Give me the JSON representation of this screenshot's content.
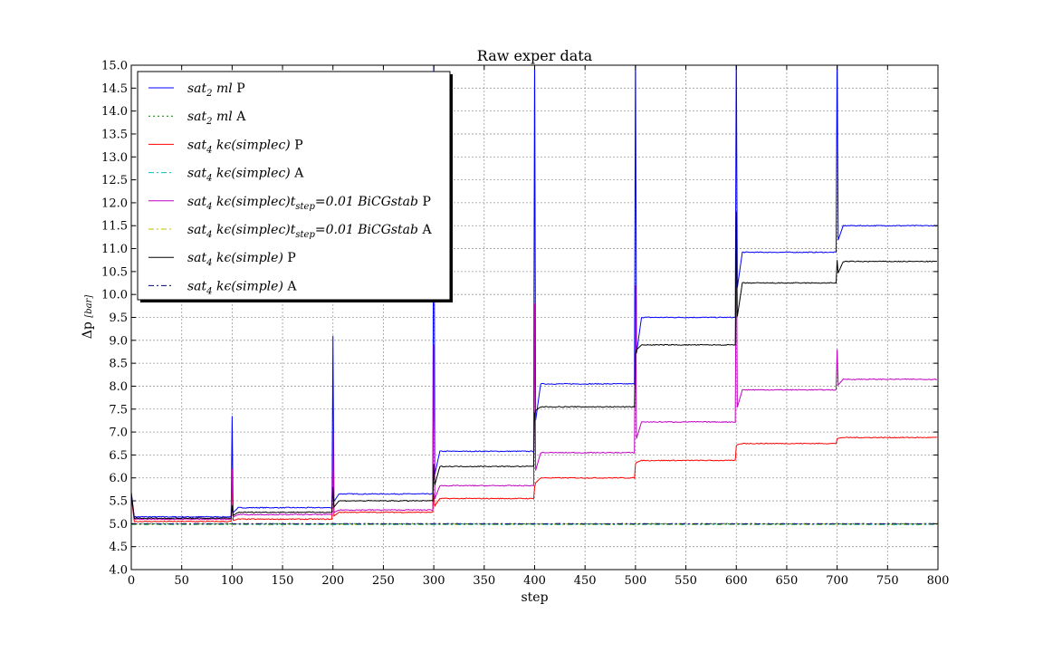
{
  "chart_data": {
    "type": "line",
    "title": "Raw exper data",
    "xlabel": "step",
    "ylabel_main": "Δp",
    "ylabel_unit": "[bar]",
    "xlim": [
      0,
      800
    ],
    "ylim": [
      4.0,
      15.0
    ],
    "xticks": [
      0,
      50,
      100,
      150,
      200,
      250,
      300,
      350,
      400,
      450,
      500,
      550,
      600,
      650,
      700,
      750,
      800
    ],
    "yticks": [
      4.0,
      4.5,
      5.0,
      5.5,
      6.0,
      6.5,
      7.0,
      7.5,
      8.0,
      8.5,
      9.0,
      9.5,
      10.0,
      10.5,
      11.0,
      11.5,
      12.0,
      12.5,
      13.0,
      13.5,
      14.0,
      14.5,
      15.0
    ],
    "grid": true,
    "legend_position": "top-left",
    "series": [
      {
        "name": "sat_2 ml P",
        "legend_math": "sat",
        "legend_sub": "2",
        "legend_rest": " ml",
        "legend_suffix": " P",
        "color": "#0000ff",
        "style": "solid",
        "levels": [
          5.15,
          5.35,
          5.65,
          6.58,
          8.05,
          9.5,
          10.92,
          11.5
        ],
        "spikes": [
          null,
          7.35,
          9.1,
          15.5,
          15.5,
          15.5,
          15.5,
          15.5
        ]
      },
      {
        "name": "sat_2 ml A",
        "legend_math": "sat",
        "legend_sub": "2",
        "legend_rest": " ml",
        "legend_suffix": " A",
        "color": "#008000",
        "style": "dotted",
        "levels": [
          5.0,
          5.0,
          5.0,
          5.0,
          5.0,
          5.0,
          5.0,
          5.0
        ],
        "spikes": [
          null,
          null,
          null,
          null,
          null,
          null,
          null,
          null
        ]
      },
      {
        "name": "sat_4 kε(simplec) P",
        "legend_math": "sat",
        "legend_sub": "4",
        "legend_rest": " kϵ(simplec)",
        "legend_suffix": " P",
        "color": "#ff0000",
        "style": "solid",
        "levels": [
          5.05,
          5.1,
          5.25,
          5.55,
          6.0,
          6.38,
          6.75,
          6.88
        ],
        "spikes": [
          null,
          6.0,
          6.5,
          5.65,
          5.8,
          6.3,
          6.7,
          6.85
        ]
      },
      {
        "name": "sat_4 kε(simplec) A",
        "legend_math": "sat",
        "legend_sub": "4",
        "legend_rest": " kϵ(simplec)",
        "legend_suffix": " A",
        "color": "#00bfbf",
        "style": "dashdot",
        "levels": [
          4.98,
          4.98,
          4.98,
          4.98,
          4.98,
          4.98,
          4.98,
          4.98
        ],
        "spikes": [
          null,
          null,
          null,
          null,
          null,
          null,
          null,
          null
        ]
      },
      {
        "name": "sat_4 kε(simplec)t_step=0.01 BiCGstab P",
        "legend_math": "sat",
        "legend_sub": "4",
        "legend_rest": " kϵ(simplec)t",
        "legend_sub2": "step",
        "legend_rest2": "=0.01 BiCGstab",
        "legend_suffix": " P",
        "color": "#bf00bf",
        "style": "solid",
        "levels": [
          5.1,
          5.2,
          5.3,
          5.83,
          6.55,
          7.22,
          7.92,
          8.15
        ],
        "spikes": [
          null,
          6.2,
          7.0,
          8.9,
          9.8,
          10.2,
          11.8,
          8.8
        ]
      },
      {
        "name": "sat_4 kε(simplec)t_step=0.01 BiCGstab A",
        "legend_math": "sat",
        "legend_sub": "4",
        "legend_rest": " kϵ(simplec)t",
        "legend_sub2": "step",
        "legend_rest2": "=0.01 BiCGstab",
        "legend_suffix": " A",
        "color": "#bfbf00",
        "style": "dashdot",
        "levels": [
          4.99,
          4.99,
          4.99,
          4.99,
          4.99,
          4.99,
          4.99,
          4.99
        ],
        "spikes": [
          null,
          null,
          null,
          null,
          null,
          null,
          null,
          null
        ]
      },
      {
        "name": "sat_4 kε(simple) P",
        "legend_math": "sat",
        "legend_sub": "4",
        "legend_rest": " kϵ(simple)",
        "legend_suffix": " P",
        "color": "#000000",
        "style": "solid",
        "levels": [
          5.12,
          5.25,
          5.5,
          6.25,
          7.55,
          8.9,
          10.25,
          10.72
        ],
        "spikes": [
          null,
          5.4,
          5.8,
          6.3,
          7.4,
          8.7,
          11.8,
          10.75
        ]
      },
      {
        "name": "sat_4 kε(simple) A",
        "legend_math": "sat",
        "legend_sub": "4",
        "legend_rest": " kϵ(simple)",
        "legend_suffix": " A",
        "color": "#00007f",
        "style": "dashdot",
        "levels": [
          5.0,
          5.0,
          5.0,
          5.0,
          5.0,
          5.0,
          5.0,
          5.0
        ],
        "spikes": [
          null,
          null,
          null,
          null,
          null,
          null,
          null,
          null
        ]
      }
    ]
  }
}
